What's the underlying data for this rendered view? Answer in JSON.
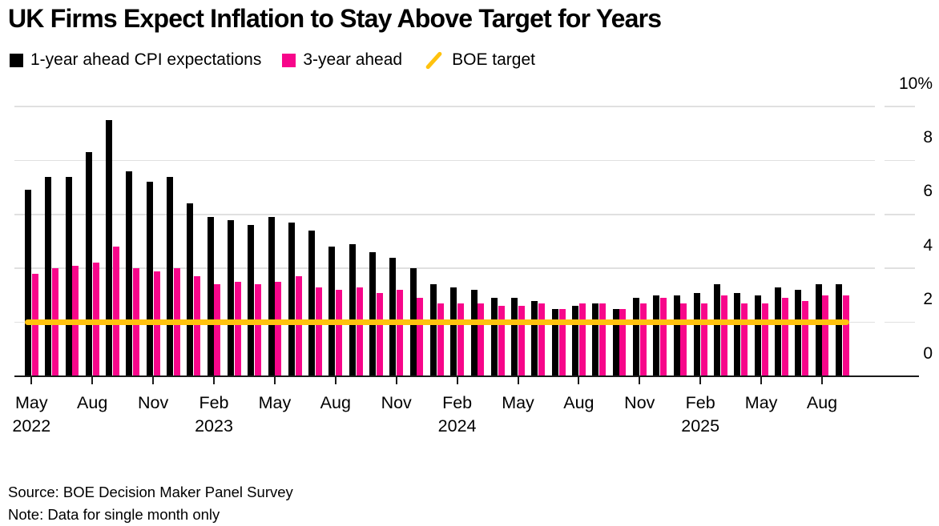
{
  "title": "UK Firms Expect Inflation to Stay Above Target for Years",
  "legend": [
    {
      "label": "1-year ahead CPI expectations",
      "swatch": "black-square"
    },
    {
      "label": "3-year ahead",
      "swatch": "pink-square"
    },
    {
      "label": "BOE target",
      "swatch": "yellow-slash"
    }
  ],
  "colors": {
    "bar_1yr": "#000000",
    "bar_3yr": "#f7068a",
    "target_line": "#ffc20e",
    "gridline": "#e0e0e0",
    "axis": "#1a1a1a"
  },
  "footer": {
    "source": "Source: BOE Decision Maker Panel Survey",
    "note": "Note: Data for single month only"
  },
  "chart_data": {
    "type": "bar",
    "unit": "%",
    "title": "UK Firms Expect Inflation to Stay Above Target for Years",
    "grid": true,
    "legend_position": "top",
    "ylim": [
      0,
      10
    ],
    "y_axis_side": "right",
    "y_axis": {
      "ticks": [
        {
          "value": 0,
          "label": "0"
        },
        {
          "value": 2,
          "label": "2"
        },
        {
          "value": 4,
          "label": "4"
        },
        {
          "value": 6,
          "label": "6"
        },
        {
          "value": 8,
          "label": "8"
        },
        {
          "value": 10,
          "label": "10%"
        }
      ]
    },
    "x": [
      "May 2022",
      "Jun 2022",
      "Jul 2022",
      "Aug 2022",
      "Sep 2022",
      "Oct 2022",
      "Nov 2022",
      "Dec 2022",
      "Jan 2023",
      "Feb 2023",
      "Mar 2023",
      "Apr 2023",
      "May 2023",
      "Jun 2023",
      "Jul 2023",
      "Aug 2023",
      "Sep 2023",
      "Oct 2023",
      "Nov 2023",
      "Dec 2023",
      "Jan 2024",
      "Feb 2024",
      "Mar 2024",
      "Apr 2024",
      "May 2024",
      "Jun 2024",
      "Jul 2024",
      "Aug 2024",
      "Sep 2024",
      "Oct 2024",
      "Nov 2024",
      "Dec 2024",
      "Jan 2025",
      "Feb 2025",
      "Mar 2025",
      "Apr 2025",
      "May 2025",
      "Jun 2025",
      "Jul 2025",
      "Aug 2025",
      "Sep 2025"
    ],
    "x_ticks": [
      {
        "index": 0,
        "month": "May",
        "year": "2022"
      },
      {
        "index": 3,
        "month": "Aug"
      },
      {
        "index": 6,
        "month": "Nov"
      },
      {
        "index": 9,
        "month": "Feb",
        "year": "2023"
      },
      {
        "index": 12,
        "month": "May"
      },
      {
        "index": 15,
        "month": "Aug"
      },
      {
        "index": 18,
        "month": "Nov"
      },
      {
        "index": 21,
        "month": "Feb",
        "year": "2024"
      },
      {
        "index": 24,
        "month": "May"
      },
      {
        "index": 27,
        "month": "Aug"
      },
      {
        "index": 30,
        "month": "Nov"
      },
      {
        "index": 33,
        "month": "Feb",
        "year": "2025"
      },
      {
        "index": 36,
        "month": "May"
      },
      {
        "index": 39,
        "month": "Aug"
      }
    ],
    "series": [
      {
        "name": "1-year ahead CPI expectations",
        "color": "#000000",
        "values": [
          6.9,
          7.4,
          7.4,
          8.3,
          9.5,
          7.6,
          7.2,
          7.4,
          6.4,
          5.9,
          5.8,
          5.6,
          5.9,
          5.7,
          5.4,
          4.8,
          4.9,
          4.6,
          4.4,
          4.0,
          3.4,
          3.3,
          3.2,
          2.9,
          2.9,
          2.8,
          2.5,
          2.6,
          2.7,
          2.5,
          2.9,
          3.0,
          3.0,
          3.1,
          3.4,
          3.1,
          3.0,
          3.3,
          3.2,
          3.4,
          3.4
        ]
      },
      {
        "name": "3-year ahead",
        "color": "#f7068a",
        "values": [
          3.8,
          4.0,
          4.1,
          4.2,
          4.8,
          4.0,
          3.9,
          4.0,
          3.7,
          3.4,
          3.5,
          3.4,
          3.5,
          3.7,
          3.3,
          3.2,
          3.3,
          3.1,
          3.2,
          2.9,
          2.7,
          2.7,
          2.7,
          2.6,
          2.6,
          2.7,
          2.5,
          2.7,
          2.7,
          2.5,
          2.7,
          2.9,
          2.7,
          2.7,
          3.0,
          2.7,
          2.7,
          2.9,
          2.8,
          3.0,
          3.0
        ]
      }
    ],
    "target_line": {
      "name": "BOE target",
      "value": 2,
      "color": "#ffc20e"
    }
  }
}
